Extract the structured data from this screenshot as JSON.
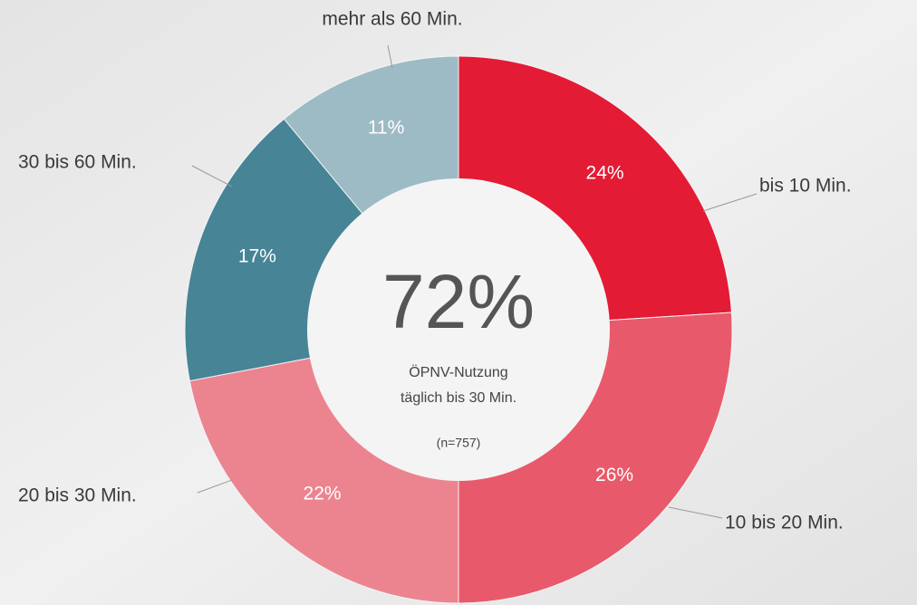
{
  "chart_data": {
    "type": "donut",
    "categories": [
      "bis 10 Min.",
      "10 bis 20 Min.",
      "20 bis 30 Min.",
      "30 bis 60 Min.",
      "mehr als 60 Min."
    ],
    "values": [
      24,
      26,
      22,
      17,
      11
    ],
    "value_labels": [
      "24%",
      "26%",
      "22%",
      "17%",
      "11%"
    ],
    "colors": [
      "#e31b35",
      "#e85a6b",
      "#ec8490",
      "#468496",
      "#9dbbc4"
    ],
    "center_title": "72%",
    "center_subtitle": [
      "ÖPNV-Nutzung",
      "täglich bis 30 Min."
    ],
    "center_note": "(n=757)"
  }
}
